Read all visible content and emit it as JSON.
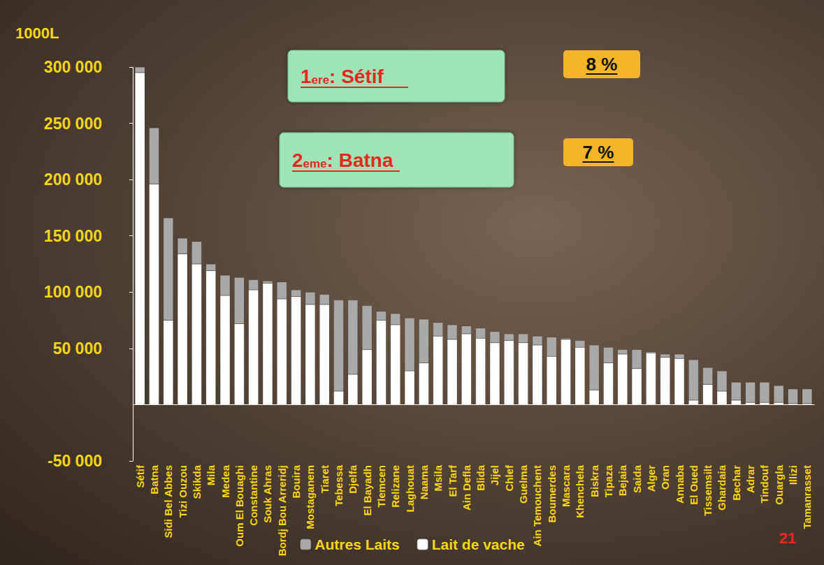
{
  "chart_data": {
    "type": "bar",
    "y_axis_label": "1000L",
    "categories": [
      "Sétif",
      "Batna",
      "Sidi Bel Abbes",
      "Tizi Ouzou",
      "Skikda",
      "Mila",
      "Medea",
      "Oum El Bouaghi",
      "Constantine",
      "Souk Ahras",
      "Bordj Bou Arreridj",
      "Bouira",
      "Mostaganem",
      "Tiaret",
      "Tebessa",
      "Djelfa",
      "El Bayadh",
      "Tlemcen",
      "Relizane",
      "Laghouat",
      "Naama",
      "Msila",
      "El Tarf",
      "Ain Defla",
      "Blida",
      "Jijel",
      "Chlef",
      "Guelma",
      "Ain Temouchent",
      "Boumerdes",
      "Mascara",
      "Khenchela",
      "Biskra",
      "Tipaza",
      "Bejaia",
      "Saida",
      "Alger",
      "Oran",
      "Annaba",
      "El Oued",
      "Tissemsilt",
      "Ghardaia",
      "Bechar",
      "Adrar",
      "Tindouf",
      "Ouargla",
      "Illizi",
      "Tamanrasset"
    ],
    "series": [
      {
        "name": "Autres Laits",
        "color": "#a9a9a9",
        "values": [
          5000,
          50000,
          91000,
          14000,
          20000,
          6000,
          18000,
          41000,
          9000,
          2000,
          15000,
          6000,
          11000,
          9000,
          81000,
          66000,
          39000,
          8000,
          10000,
          47000,
          39000,
          12000,
          13000,
          7000,
          9000,
          10000,
          6000,
          8000,
          8000,
          17000,
          1000,
          6000,
          40000,
          14000,
          4000,
          17000,
          1000,
          3000,
          4000,
          36000,
          15000,
          18000,
          16000,
          18000,
          18000,
          15000,
          13000,
          13000
        ]
      },
      {
        "name": "Lait de vache",
        "color": "#ffffff",
        "values": [
          295000,
          196000,
          75000,
          134000,
          125000,
          119000,
          97000,
          72000,
          102000,
          108000,
          94000,
          96000,
          89000,
          89000,
          12000,
          27000,
          49000,
          75000,
          71000,
          30000,
          37000,
          61000,
          58000,
          63000,
          59000,
          55000,
          57000,
          55000,
          53000,
          43000,
          58000,
          51000,
          13000,
          37000,
          45000,
          32000,
          46000,
          42000,
          41000,
          4000,
          18000,
          12000,
          4000,
          2000,
          2000,
          2000,
          1000,
          1000
        ]
      }
    ],
    "stacked": true,
    "ylim": [
      -50000,
      300000
    ],
    "yticks": [
      {
        "value": -50000,
        "label": "-50 000"
      },
      {
        "value": 50000,
        "label": "50 000"
      },
      {
        "value": 100000,
        "label": "100 000"
      },
      {
        "value": 150000,
        "label": "150 000"
      },
      {
        "value": 200000,
        "label": "200 000"
      },
      {
        "value": 250000,
        "label": "250 000"
      },
      {
        "value": 300000,
        "label": "300 000"
      }
    ],
    "grid": false,
    "legend": "bottom",
    "annotations": [
      {
        "rank": "1ere: Sétif",
        "share": "8 %"
      },
      {
        "rank": "2eme: Batna",
        "share": "7 %"
      }
    ],
    "page_number": "21"
  }
}
